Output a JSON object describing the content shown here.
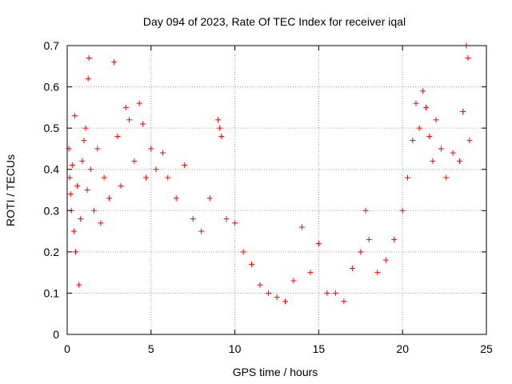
{
  "chart_data": {
    "type": "scatter",
    "title": "Day 094 of 2023, Rate Of TEC Index for receiver iqal",
    "xlabel": "GPS time / hours",
    "ylabel": "ROTI / TECUs",
    "xlim": [
      0,
      25
    ],
    "ylim": [
      0,
      0.7
    ],
    "x_ticks": [
      "0",
      "5",
      "10",
      "15",
      "20",
      "25"
    ],
    "y_ticks": [
      "0",
      "0.1",
      "0.2",
      "0.3",
      "0.4",
      "0.5",
      "0.6",
      "0.7"
    ],
    "grid": true,
    "marker": "+",
    "color": "#ff0000",
    "series": [
      {
        "points": [
          [
            0.1,
            0.45
          ],
          [
            0.15,
            0.38
          ],
          [
            0.2,
            0.34
          ],
          [
            0.25,
            0.3
          ],
          [
            0.3,
            0.41
          ],
          [
            0.4,
            0.25
          ],
          [
            0.45,
            0.53
          ],
          [
            0.5,
            0.2
          ],
          [
            0.6,
            0.36
          ],
          [
            0.7,
            0.12
          ],
          [
            0.8,
            0.28
          ],
          [
            0.9,
            0.42
          ],
          [
            1.0,
            0.47
          ],
          [
            1.1,
            0.5
          ],
          [
            1.2,
            0.35
          ],
          [
            1.25,
            0.62
          ],
          [
            1.3,
            0.67
          ],
          [
            1.4,
            0.4
          ],
          [
            1.6,
            0.3
          ],
          [
            1.8,
            0.45
          ],
          [
            2.0,
            0.27
          ],
          [
            2.2,
            0.38
          ],
          [
            2.5,
            0.33
          ],
          [
            2.8,
            0.66
          ],
          [
            3.0,
            0.48
          ],
          [
            3.2,
            0.36
          ],
          [
            3.5,
            0.55
          ],
          [
            3.7,
            0.52
          ],
          [
            4.0,
            0.42
          ],
          [
            4.3,
            0.56
          ],
          [
            4.5,
            0.51
          ],
          [
            4.7,
            0.38
          ],
          [
            5.0,
            0.45
          ],
          [
            5.3,
            0.4
          ],
          [
            5.7,
            0.44
          ],
          [
            6.0,
            0.38
          ],
          [
            6.5,
            0.33
          ],
          [
            7.0,
            0.41
          ],
          [
            7.5,
            0.28
          ],
          [
            8.0,
            0.25
          ],
          [
            8.5,
            0.33
          ],
          [
            9.0,
            0.52
          ],
          [
            9.1,
            0.5
          ],
          [
            9.2,
            0.48
          ],
          [
            9.5,
            0.28
          ],
          [
            10.0,
            0.27
          ],
          [
            10.5,
            0.2
          ],
          [
            11.0,
            0.17
          ],
          [
            11.5,
            0.12
          ],
          [
            12.0,
            0.1
          ],
          [
            12.5,
            0.09
          ],
          [
            13.0,
            0.08
          ],
          [
            13.5,
            0.13
          ],
          [
            14.0,
            0.26
          ],
          [
            14.5,
            0.15
          ],
          [
            15.0,
            0.22
          ],
          [
            15.5,
            0.1
          ],
          [
            16.0,
            0.1
          ],
          [
            16.5,
            0.08
          ],
          [
            17.0,
            0.16
          ],
          [
            17.5,
            0.2
          ],
          [
            17.8,
            0.3
          ],
          [
            18.0,
            0.23
          ],
          [
            18.5,
            0.15
          ],
          [
            19.0,
            0.18
          ],
          [
            19.5,
            0.23
          ],
          [
            20.0,
            0.3
          ],
          [
            20.3,
            0.38
          ],
          [
            20.6,
            0.47
          ],
          [
            20.8,
            0.56
          ],
          [
            21.0,
            0.5
          ],
          [
            21.2,
            0.59
          ],
          [
            21.4,
            0.55
          ],
          [
            21.6,
            0.48
          ],
          [
            21.8,
            0.42
          ],
          [
            22.0,
            0.52
          ],
          [
            22.3,
            0.45
          ],
          [
            22.6,
            0.38
          ],
          [
            23.0,
            0.44
          ],
          [
            23.4,
            0.42
          ],
          [
            23.6,
            0.54
          ],
          [
            23.8,
            0.7
          ],
          [
            23.9,
            0.67
          ],
          [
            24.0,
            0.47
          ]
        ]
      }
    ]
  }
}
